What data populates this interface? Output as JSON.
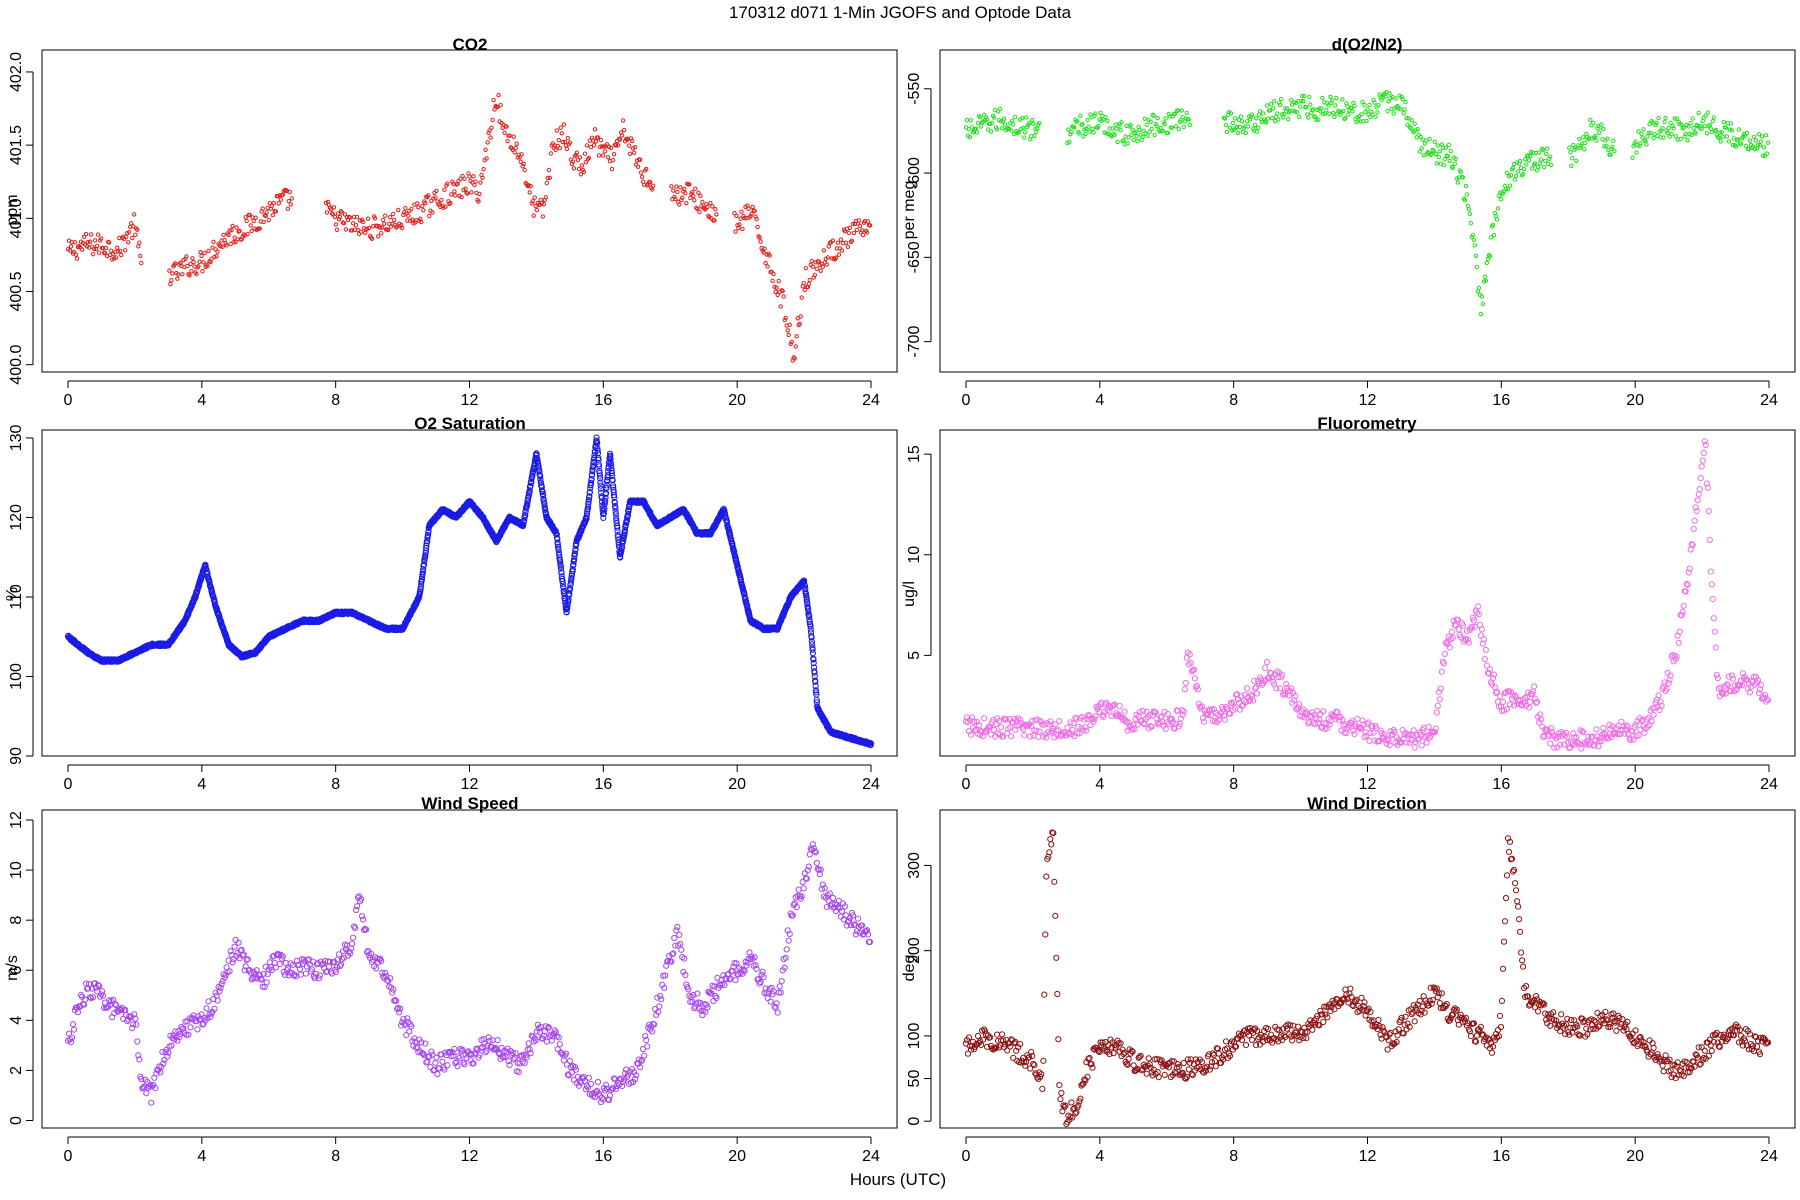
{
  "figure": {
    "title": "170312   d071   1-Min  JGOFS and Optode Data",
    "xlabel": "Hours (UTC)"
  },
  "chart_data": [
    {
      "type": "scatter",
      "title": "CO2",
      "xlabel": "",
      "ylabel": "ppm",
      "xlim": [
        0,
        24
      ],
      "ylim": [
        399.95,
        402.15
      ],
      "xticks": [
        0,
        4,
        8,
        12,
        16,
        20,
        24
      ],
      "yticks": [
        400.0,
        400.5,
        401.0,
        401.5,
        402.0
      ],
      "ytick_labels": [
        "400.0",
        "400.5",
        "401.0",
        "401.5",
        "402.0"
      ],
      "ytick_rotate": true,
      "color": "#e0201c",
      "marker_size": 1.7,
      "series": [
        {
          "x": [
            0.0,
            0.5,
            1.0,
            1.5,
            2.0,
            2.2,
            3.2,
            3.6,
            4.0,
            4.4,
            4.8,
            5.2,
            5.6,
            6.0,
            6.4,
            7.2,
            8.0,
            8.5,
            9.0,
            9.5,
            10.0,
            10.5,
            11.0,
            11.5,
            12.0,
            12.3,
            12.8,
            13.0,
            13.3,
            13.6,
            13.9,
            14.2,
            14.5,
            14.8,
            15.1,
            15.4,
            15.7,
            16.0,
            16.3,
            16.6,
            17.2,
            18.2,
            18.5,
            19.2,
            20.0,
            20.4,
            20.8,
            21.1,
            21.4,
            21.7,
            22.0,
            22.7,
            23.2,
            23.6,
            24.0
          ],
          "y": [
            400.77,
            400.82,
            400.82,
            400.78,
            400.96,
            400.66,
            400.62,
            400.68,
            400.7,
            400.8,
            400.88,
            400.92,
            400.98,
            401.05,
            401.12,
            401.15,
            401.0,
            400.95,
            400.93,
            400.96,
            400.99,
            401.04,
            401.12,
            401.18,
            401.24,
            401.18,
            401.85,
            401.62,
            401.52,
            401.38,
            401.08,
            401.05,
            401.5,
            401.58,
            401.4,
            401.35,
            401.55,
            401.45,
            401.4,
            401.6,
            401.3,
            401.15,
            401.18,
            401.05,
            400.95,
            401.05,
            400.8,
            400.6,
            400.4,
            400.05,
            400.58,
            400.75,
            400.85,
            400.92,
            400.9
          ]
        }
      ]
    },
    {
      "type": "scatter",
      "title": "d(O2/N2)",
      "xlabel": "",
      "ylabel": "per meg",
      "xlim": [
        0,
        24
      ],
      "ylim": [
        -718,
        -527
      ],
      "xticks": [
        0,
        4,
        8,
        12,
        16,
        20,
        24
      ],
      "yticks": [
        -700,
        -650,
        -600,
        -550
      ],
      "ytick_labels": [
        "-700",
        "-650",
        "-600",
        "-550"
      ],
      "ytick_rotate": true,
      "color": "#22e01c",
      "marker_size": 1.7,
      "series": [
        {
          "x": [
            0.0,
            0.5,
            1.0,
            1.5,
            2.1,
            3.0,
            3.5,
            4.0,
            4.5,
            5.0,
            5.5,
            6.0,
            6.5,
            7.0,
            7.5,
            8.0,
            8.5,
            9.0,
            9.5,
            10.0,
            10.5,
            11.0,
            11.5,
            12.0,
            12.5,
            13.0,
            13.5,
            14.0,
            14.5,
            15.0,
            15.4,
            15.7,
            16.0,
            16.3,
            16.6,
            17.2,
            18.2,
            18.6,
            19.0,
            19.6,
            20.0,
            20.5,
            21.0,
            21.5,
            22.0,
            22.5,
            23.0,
            23.5,
            24.0
          ],
          "y": [
            -575,
            -572,
            -568,
            -572,
            -575,
            -576,
            -572,
            -570,
            -575,
            -578,
            -572,
            -570,
            -568,
            -565,
            -568,
            -570,
            -572,
            -565,
            -562,
            -560,
            -562,
            -560,
            -562,
            -565,
            -558,
            -558,
            -580,
            -588,
            -590,
            -615,
            -680,
            -640,
            -612,
            -600,
            -595,
            -592,
            -590,
            -575,
            -575,
            -595,
            -582,
            -575,
            -572,
            -575,
            -568,
            -575,
            -578,
            -580,
            -585
          ]
        }
      ]
    },
    {
      "type": "scatter",
      "title": "O2 Saturation",
      "xlabel": "",
      "ylabel": "%",
      "xlim": [
        0,
        24
      ],
      "ylim": [
        90,
        131
      ],
      "xticks": [
        0,
        4,
        8,
        12,
        16,
        20,
        24
      ],
      "yticks": [
        90,
        100,
        110,
        120,
        130
      ],
      "ytick_labels": [
        "90",
        "100",
        "110",
        "120",
        "130"
      ],
      "ytick_rotate": true,
      "color": "#1c1ce6",
      "marker_size": 2.6,
      "series": [
        {
          "x": [
            0.0,
            0.3,
            0.6,
            1.0,
            1.5,
            2.0,
            2.5,
            3.0,
            3.5,
            3.8,
            4.1,
            4.4,
            4.8,
            5.2,
            5.6,
            6.0,
            6.5,
            7.0,
            7.5,
            8.0,
            8.5,
            9.0,
            9.5,
            10.0,
            10.5,
            10.8,
            11.2,
            11.6,
            12.0,
            12.4,
            12.8,
            13.2,
            13.6,
            14.0,
            14.3,
            14.6,
            14.9,
            15.2,
            15.5,
            15.8,
            16.0,
            16.2,
            16.5,
            16.8,
            17.2,
            17.6,
            18.0,
            18.4,
            18.8,
            19.2,
            19.6,
            20.0,
            20.4,
            20.8,
            21.2,
            21.6,
            22.0,
            22.2,
            22.4,
            22.8,
            23.2,
            23.6,
            24.0
          ],
          "y": [
            105,
            104,
            103,
            102,
            102,
            103,
            104,
            104,
            107,
            110,
            114,
            109,
            104,
            102.5,
            103,
            105,
            106,
            107,
            107,
            108,
            108,
            107,
            106,
            106,
            110,
            119,
            121,
            120,
            122,
            120,
            117,
            120,
            119,
            128,
            120,
            118,
            108,
            117,
            120,
            130,
            120,
            128,
            115,
            122,
            122,
            119,
            120,
            121,
            118,
            118,
            121,
            114,
            107,
            106,
            106,
            110,
            112,
            106,
            96,
            93,
            92.5,
            92,
            91.5
          ]
        }
      ]
    },
    {
      "type": "scatter",
      "title": "Fluorometry",
      "xlabel": "",
      "ylabel": "ug/l",
      "xlim": [
        0,
        24
      ],
      "ylim": [
        0,
        16.2
      ],
      "xticks": [
        0,
        4,
        8,
        12,
        16,
        20,
        24
      ],
      "yticks": [
        5,
        10,
        15
      ],
      "ytick_labels": [
        "5",
        "10",
        "15"
      ],
      "ytick_rotate": true,
      "color": "#ee6ee6",
      "marker_size": 2.6,
      "series": [
        {
          "x": [
            0.0,
            1.0,
            2.0,
            3.0,
            3.5,
            4.0,
            4.3,
            4.8,
            5.5,
            6.5,
            6.6,
            6.8,
            7.0,
            7.5,
            8.0,
            8.5,
            9.0,
            9.5,
            10.0,
            10.5,
            11.0,
            11.5,
            12.0,
            12.5,
            13.0,
            13.5,
            14.0,
            14.3,
            14.6,
            15.0,
            15.3,
            15.6,
            16.0,
            16.3,
            16.6,
            17.0,
            17.3,
            17.5,
            18.0,
            18.5,
            19.0,
            19.5,
            20.0,
            20.4,
            20.8,
            21.2,
            21.5,
            21.8,
            22.1,
            22.3,
            22.5,
            22.8,
            23.2,
            23.6,
            24.0
          ],
          "y": [
            1.5,
            1.4,
            1.4,
            1.4,
            1.5,
            2.2,
            2.5,
            1.7,
            1.8,
            1.8,
            5.0,
            4.5,
            2.0,
            2.0,
            2.5,
            3.0,
            4.2,
            3.5,
            2.2,
            1.8,
            1.8,
            1.5,
            1.2,
            1.0,
            0.8,
            0.9,
            1.2,
            5.0,
            6.5,
            6.0,
            7.0,
            4.5,
            2.5,
            3.0,
            2.5,
            3.0,
            1.0,
            0.9,
            0.8,
            0.8,
            1.0,
            1.2,
            1.3,
            1.6,
            3.0,
            5.0,
            8.0,
            12.0,
            15.5,
            8.0,
            3.0,
            3.5,
            3.8,
            3.5,
            3.0
          ]
        }
      ]
    },
    {
      "type": "scatter",
      "title": "Wind Speed",
      "xlabel": "",
      "ylabel": "m/s",
      "xlim": [
        0,
        24
      ],
      "ylim": [
        -0.3,
        12.4
      ],
      "xticks": [
        0,
        4,
        8,
        12,
        16,
        20,
        24
      ],
      "yticks": [
        0,
        2,
        4,
        6,
        8,
        10,
        12
      ],
      "ytick_labels": [
        "0",
        "2",
        "4",
        "6",
        "8",
        "10",
        "12"
      ],
      "ytick_rotate": true,
      "color": "#a645ee",
      "marker_size": 2.6,
      "series": [
        {
          "x": [
            0.0,
            0.3,
            0.6,
            1.0,
            1.5,
            2.0,
            2.2,
            2.5,
            2.8,
            3.2,
            3.6,
            4.0,
            4.5,
            5.0,
            5.4,
            5.8,
            6.2,
            6.6,
            7.0,
            7.5,
            8.0,
            8.5,
            8.7,
            9.0,
            9.5,
            10.0,
            10.5,
            11.0,
            11.5,
            12.0,
            12.5,
            13.0,
            13.5,
            14.0,
            14.5,
            15.0,
            15.5,
            16.0,
            16.5,
            17.0,
            17.5,
            17.8,
            18.2,
            18.6,
            19.0,
            19.5,
            20.0,
            20.4,
            20.8,
            21.2,
            21.6,
            22.0,
            22.3,
            22.6,
            23.0,
            23.4,
            23.8,
            24.0
          ],
          "y": [
            3.0,
            4.5,
            5.3,
            5.0,
            4.2,
            4.0,
            1.5,
            1.0,
            2.5,
            3.5,
            3.8,
            4.0,
            5.0,
            7.0,
            6.0,
            5.5,
            6.5,
            6.0,
            6.2,
            6.0,
            6.2,
            7.0,
            9.0,
            6.5,
            6.0,
            4.0,
            3.0,
            2.2,
            2.5,
            2.5,
            3.0,
            2.8,
            2.2,
            3.5,
            3.5,
            2.0,
            1.5,
            1.0,
            1.5,
            2.0,
            4.0,
            5.5,
            7.5,
            5.0,
            4.5,
            5.5,
            6.0,
            6.5,
            5.5,
            4.5,
            8.0,
            9.5,
            11.0,
            9.0,
            8.5,
            8.0,
            7.5,
            7.5
          ]
        }
      ]
    },
    {
      "type": "scatter",
      "title": "Wind Direction",
      "xlabel": "",
      "ylabel": "deg",
      "xlim": [
        0,
        24
      ],
      "ylim": [
        -8,
        365
      ],
      "xticks": [
        0,
        4,
        8,
        12,
        16,
        20,
        24
      ],
      "yticks": [
        0,
        50,
        100,
        200,
        300
      ],
      "ytick_labels": [
        "0",
        "50",
        "100",
        "200",
        "300"
      ],
      "ytick_rotate": true,
      "color": "#8b1212",
      "marker_size": 2.6,
      "series": [
        {
          "x": [
            0.0,
            0.4,
            0.8,
            1.2,
            1.6,
            2.0,
            2.3,
            2.4,
            2.6,
            2.8,
            3.0,
            3.3,
            3.6,
            4.0,
            4.5,
            5.0,
            5.5,
            6.0,
            6.5,
            7.0,
            7.5,
            8.0,
            8.5,
            9.0,
            9.5,
            10.0,
            10.5,
            11.0,
            11.5,
            12.0,
            12.3,
            12.6,
            13.0,
            13.5,
            14.0,
            14.5,
            15.0,
            15.4,
            15.7,
            16.0,
            16.2,
            16.4,
            16.7,
            17.0,
            17.5,
            18.0,
            18.5,
            19.0,
            19.5,
            20.0,
            20.4,
            20.8,
            21.2,
            21.6,
            22.0,
            22.4,
            22.8,
            23.2,
            23.6,
            24.0
          ],
          "y": [
            85,
            100,
            95,
            90,
            80,
            70,
            40,
            290,
            345,
            30,
            5,
            20,
            60,
            90,
            90,
            70,
            65,
            60,
            60,
            65,
            75,
            90,
            100,
            100,
            105,
            100,
            120,
            140,
            145,
            130,
            110,
            90,
            110,
            130,
            150,
            125,
            110,
            100,
            80,
            120,
            330,
            290,
            150,
            140,
            120,
            110,
            110,
            120,
            115,
            100,
            85,
            70,
            60,
            65,
            80,
            95,
            105,
            100,
            90,
            85
          ]
        }
      ]
    }
  ]
}
